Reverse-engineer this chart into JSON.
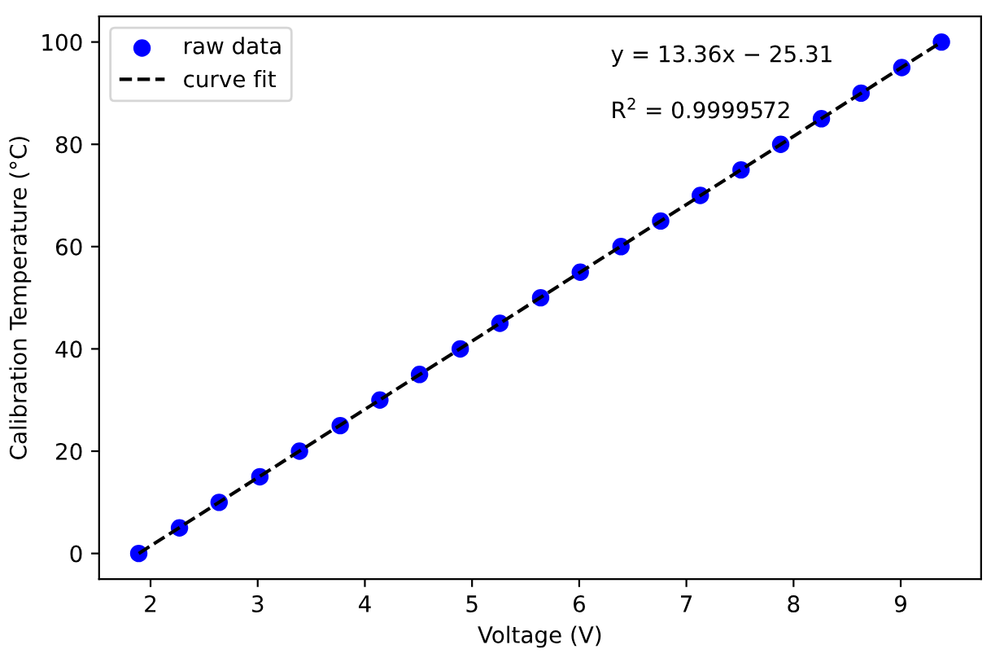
{
  "chart_data": {
    "type": "scatter",
    "xlabel": "Voltage (V)",
    "ylabel": "Calibration Temperature (°C)",
    "series": [
      {
        "name": "raw data",
        "color": "#0000ff",
        "marker": "circle",
        "x": [
          1.89,
          2.27,
          2.64,
          3.02,
          3.39,
          3.77,
          4.14,
          4.51,
          4.89,
          5.26,
          5.64,
          6.01,
          6.39,
          6.76,
          7.13,
          7.51,
          7.88,
          8.26,
          8.63,
          9.01,
          9.38
        ],
        "values": [
          0,
          5,
          10,
          15,
          20,
          25,
          30,
          35,
          40,
          45,
          50,
          55,
          60,
          65,
          70,
          75,
          80,
          85,
          90,
          95,
          100
        ]
      },
      {
        "name": "curve fit",
        "type": "line",
        "color": "#000000",
        "line_style": "dashed",
        "marker": "none",
        "x": [
          1.89,
          9.38
        ],
        "values": [
          0,
          100
        ]
      }
    ],
    "annotations": [
      "y = 13.36x − 25.31",
      "R$^{2}$ = 0.9999572"
    ],
    "xlim": [
      1.52,
      9.75
    ],
    "ylim": [
      -5,
      105
    ],
    "xticks": [
      2,
      3,
      4,
      5,
      6,
      7,
      8,
      9
    ],
    "yticks": [
      0,
      20,
      40,
      60,
      80,
      100
    ],
    "grid": false,
    "legend": "top left"
  }
}
